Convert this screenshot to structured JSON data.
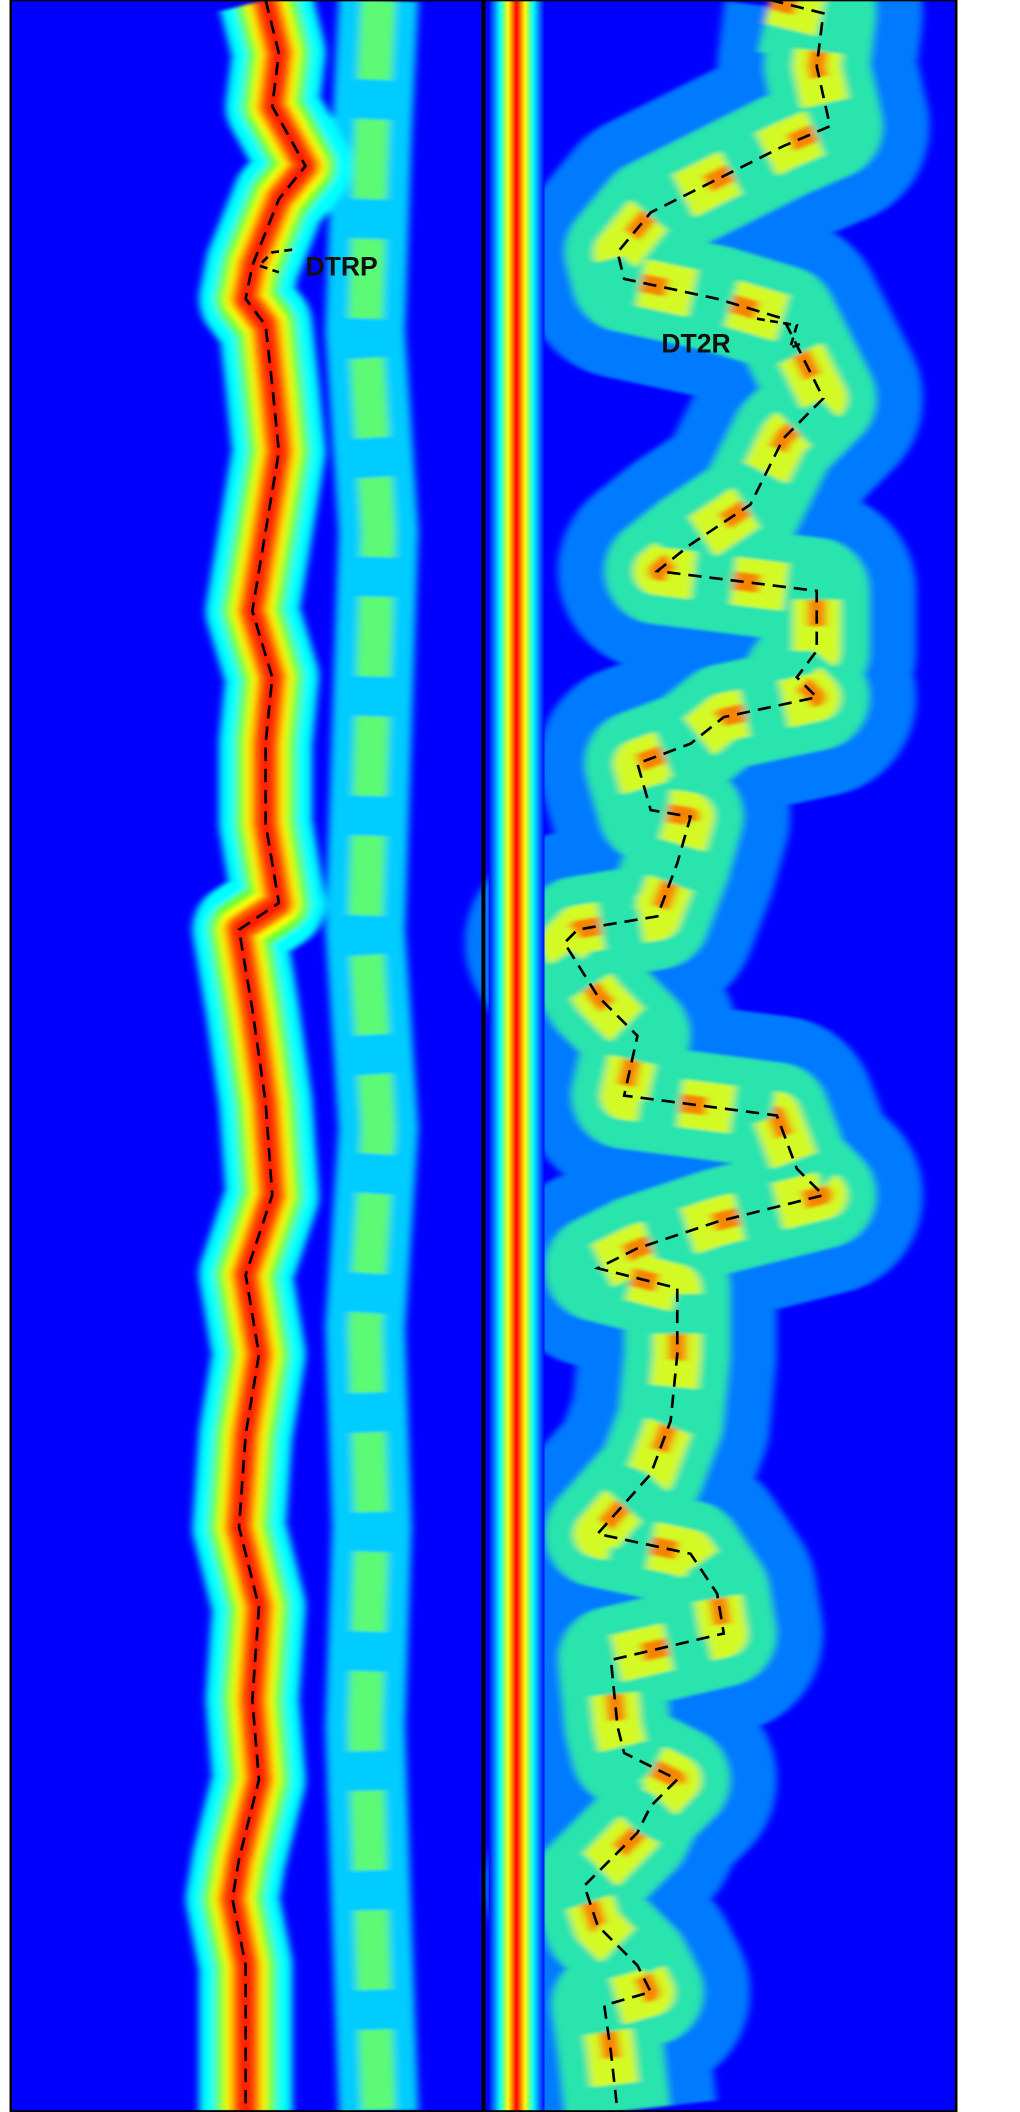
{
  "annotations": [
    "DTRP",
    "DT2R"
  ]
}
